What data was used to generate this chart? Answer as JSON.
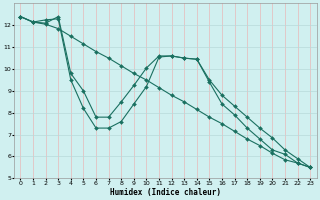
{
  "xlabel": "Humidex (Indice chaleur)",
  "bg_color": "#d0f0f0",
  "grid_color_h": "#b8dada",
  "grid_color_v": "#e8b8b8",
  "line_color": "#1a7060",
  "xlim": [
    -0.5,
    23.5
  ],
  "ylim": [
    5,
    13
  ],
  "yticks": [
    5,
    6,
    7,
    8,
    9,
    10,
    11,
    12
  ],
  "xticks": [
    0,
    1,
    2,
    3,
    4,
    5,
    6,
    7,
    8,
    9,
    10,
    11,
    12,
    13,
    14,
    15,
    16,
    17,
    18,
    19,
    20,
    21,
    22,
    23
  ],
  "line1_x": [
    0,
    1,
    2,
    3,
    4,
    5,
    6,
    7,
    8,
    9,
    10,
    11,
    12,
    13,
    14,
    15,
    16,
    17,
    18,
    19,
    20,
    21,
    22,
    23
  ],
  "line1_y": [
    12.4,
    12.15,
    12.25,
    12.3,
    9.5,
    8.2,
    7.3,
    7.3,
    7.6,
    8.4,
    9.2,
    10.55,
    10.6,
    10.5,
    10.45,
    9.4,
    8.4,
    7.9,
    7.3,
    6.8,
    6.3,
    6.1,
    5.7,
    5.5
  ],
  "line2_x": [
    0,
    1,
    2,
    3,
    4,
    5,
    6,
    7,
    8,
    9,
    10,
    11,
    12,
    13,
    14,
    15,
    16,
    17,
    18,
    19,
    20,
    21,
    22,
    23
  ],
  "line2_y": [
    12.4,
    12.15,
    12.1,
    12.4,
    9.8,
    9.0,
    7.8,
    7.8,
    8.5,
    9.25,
    10.05,
    10.6,
    10.6,
    10.5,
    10.45,
    9.5,
    8.8,
    8.3,
    7.8,
    7.3,
    6.85,
    6.3,
    5.9,
    5.5
  ],
  "line3_x": [
    0,
    1,
    2,
    3,
    4,
    5,
    6,
    7,
    8,
    9,
    10,
    11,
    12,
    13,
    14,
    15,
    16,
    17,
    18,
    19,
    20,
    21,
    22,
    23
  ],
  "line3_y": [
    12.4,
    12.15,
    12.05,
    11.85,
    11.5,
    11.15,
    10.8,
    10.5,
    10.15,
    9.8,
    9.5,
    9.15,
    8.8,
    8.5,
    8.15,
    7.8,
    7.5,
    7.15,
    6.8,
    6.5,
    6.15,
    5.85,
    5.7,
    5.5
  ]
}
